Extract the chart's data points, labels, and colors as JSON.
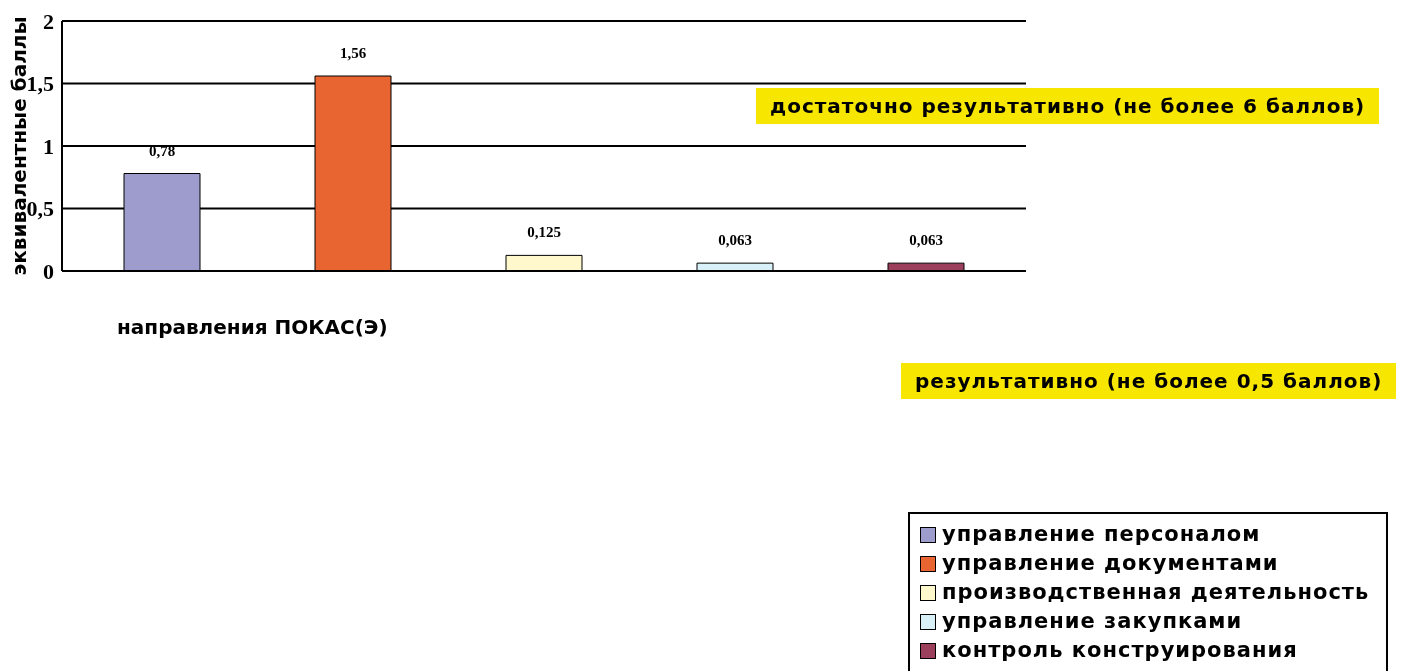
{
  "chart_data": {
    "type": "bar",
    "xlabel": "направления ПОКАС(Э)",
    "ylabel": "эквивалентные баллы",
    "categories": [
      null
    ],
    "series": [
      {
        "name": "управление персоналом",
        "color": "#9e9ccc",
        "values": [
          0.78
        ],
        "value_labels": [
          "0,78"
        ]
      },
      {
        "name": "управление документами",
        "color": "#e86430",
        "values": [
          1.56
        ],
        "value_labels": [
          "1,56"
        ]
      },
      {
        "name": "производственная деятельность",
        "color": "#fff8cc",
        "values": [
          0.125
        ],
        "value_labels": [
          "0,125"
        ]
      },
      {
        "name": "управление закупками",
        "color": "#d8f0f8",
        "values": [
          0.063
        ],
        "value_labels": [
          "0,063"
        ]
      },
      {
        "name": "контроль конструирования",
        "color": "#9c3f5c",
        "values": [
          0.063
        ],
        "value_labels": [
          "0,063"
        ]
      }
    ],
    "ylim": [
      0,
      2
    ],
    "yticks": [
      0,
      {
        "value": 0.5,
        "label": "0,5"
      },
      1,
      {
        "value": 1.5,
        "label": "1,5"
      },
      2
    ],
    "grid": "y",
    "legend": "bottom right",
    "annotations": [
      "достаточно результативно (не более 6 баллов)",
      "результативно (не более 0,5 баллов)"
    ]
  }
}
